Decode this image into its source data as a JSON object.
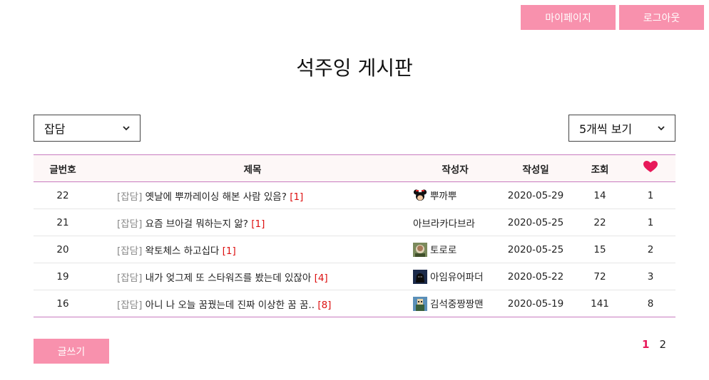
{
  "header": {
    "mypage_label": "마이페이지",
    "logout_label": "로그아웃"
  },
  "page_title": "석주잉 게시판",
  "filters": {
    "category_selected": "잡담",
    "perpage_selected": "5개씩 보기"
  },
  "table": {
    "headers": {
      "no": "글번호",
      "title": "제목",
      "author": "작성자",
      "date": "작성일",
      "views": "조회",
      "likes_icon": "heart-icon"
    },
    "rows": [
      {
        "no": "22",
        "category": "[잡담]",
        "title": "옛날에 뿌까레이싱 해본 사람 있음?",
        "comments": "[1]",
        "avatar": "mickey",
        "author": "뿌까뿌",
        "date": "2020-05-29",
        "views": "14",
        "likes": "1"
      },
      {
        "no": "21",
        "category": "[잡담]",
        "title": "요즘 브아걸 뭐하는지 앎?",
        "comments": "[1]",
        "avatar": "",
        "author": "아브라카다브라",
        "date": "2020-05-25",
        "views": "22",
        "likes": "1"
      },
      {
        "no": "20",
        "category": "[잡담]",
        "title": "왁토체스 하고십다",
        "comments": "[1]",
        "avatar": "totoro",
        "author": "토로로",
        "date": "2020-05-25",
        "views": "15",
        "likes": "2"
      },
      {
        "no": "19",
        "category": "[잡담]",
        "title": "내가 엊그제 또 스타워즈를 봤는데 있잖아",
        "comments": "[4]",
        "avatar": "vader",
        "author": "아임유어파더",
        "date": "2020-05-22",
        "views": "72",
        "likes": "3"
      },
      {
        "no": "16",
        "category": "[잡담]",
        "title": "아니 나 오늘 꿈꿨는데 진짜 이상한 꿈 꿈..",
        "comments": "[8]",
        "avatar": "pixel",
        "author": "김석중짱짱맨",
        "date": "2020-05-19",
        "views": "141",
        "likes": "8"
      }
    ]
  },
  "footer": {
    "write_label": "글쓰기",
    "pages": [
      "1",
      "2"
    ],
    "current_page": "1"
  },
  "colors": {
    "accent": "#f891ad",
    "border": "#c87bbf",
    "active_page": "#e8195a",
    "comment": "#dd1111",
    "heart": "#e8195a"
  }
}
